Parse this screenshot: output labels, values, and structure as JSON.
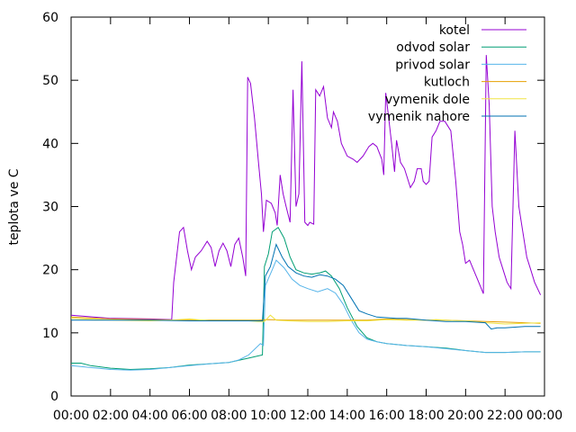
{
  "chart_data": {
    "type": "line",
    "title": "",
    "xlabel": "",
    "ylabel": "teplota ve C",
    "xlim": [
      0,
      24
    ],
    "ylim": [
      0,
      60
    ],
    "x_ticks": [
      0,
      2,
      4,
      6,
      8,
      10,
      12,
      14,
      16,
      18,
      20,
      22,
      24
    ],
    "x_tick_labels": [
      "00:00",
      "02:00",
      "04:00",
      "06:00",
      "08:00",
      "10:00",
      "12:00",
      "14:00",
      "16:00",
      "18:00",
      "20:00",
      "22:00",
      "00:00"
    ],
    "y_ticks": [
      0,
      10,
      20,
      30,
      40,
      50,
      60
    ],
    "y_tick_labels": [
      "0",
      "10",
      "20",
      "30",
      "40",
      "50",
      "60"
    ],
    "grid": false,
    "legend_position": "top-right",
    "series": [
      {
        "name": "kotel",
        "color": "#9400d3",
        "points": [
          [
            0,
            12.8
          ],
          [
            2,
            12.3
          ],
          [
            4,
            12.2
          ],
          [
            5.1,
            12.1
          ],
          [
            5.2,
            18
          ],
          [
            5.5,
            26
          ],
          [
            5.7,
            26.7
          ],
          [
            5.9,
            23
          ],
          [
            6.1,
            20
          ],
          [
            6.3,
            22
          ],
          [
            6.6,
            23
          ],
          [
            6.9,
            24.5
          ],
          [
            7.1,
            23.5
          ],
          [
            7.3,
            20.5
          ],
          [
            7.5,
            23
          ],
          [
            7.7,
            24.2
          ],
          [
            7.9,
            23
          ],
          [
            8.1,
            20.5
          ],
          [
            8.3,
            24
          ],
          [
            8.5,
            25
          ],
          [
            8.7,
            22
          ],
          [
            8.85,
            19
          ],
          [
            8.95,
            50.5
          ],
          [
            9.1,
            49.5
          ],
          [
            9.3,
            44
          ],
          [
            9.5,
            37
          ],
          [
            9.65,
            32
          ],
          [
            9.75,
            26
          ],
          [
            9.9,
            31
          ],
          [
            10.15,
            30.5
          ],
          [
            10.35,
            29
          ],
          [
            10.45,
            27
          ],
          [
            10.6,
            35
          ],
          [
            10.75,
            32
          ],
          [
            10.9,
            30
          ],
          [
            11.1,
            27.5
          ],
          [
            11.25,
            48.5
          ],
          [
            11.4,
            30
          ],
          [
            11.55,
            32
          ],
          [
            11.7,
            53
          ],
          [
            11.85,
            27.5
          ],
          [
            12.0,
            27
          ],
          [
            12.1,
            27.5
          ],
          [
            12.3,
            27.2
          ],
          [
            12.4,
            48.5
          ],
          [
            12.6,
            47.5
          ],
          [
            12.8,
            49
          ],
          [
            13.0,
            44
          ],
          [
            13.2,
            42.5
          ],
          [
            13.3,
            45
          ],
          [
            13.5,
            43.5
          ],
          [
            13.7,
            40
          ],
          [
            14.0,
            38
          ],
          [
            14.3,
            37.5
          ],
          [
            14.5,
            37
          ],
          [
            14.8,
            38
          ],
          [
            15.1,
            39.5
          ],
          [
            15.3,
            40
          ],
          [
            15.5,
            39.5
          ],
          [
            15.75,
            37.5
          ],
          [
            15.85,
            35
          ],
          [
            15.95,
            48
          ],
          [
            16.1,
            44
          ],
          [
            16.25,
            40
          ],
          [
            16.4,
            35.5
          ],
          [
            16.5,
            40.5
          ],
          [
            16.7,
            37
          ],
          [
            16.9,
            36
          ],
          [
            17.2,
            33
          ],
          [
            17.4,
            34
          ],
          [
            17.55,
            36
          ],
          [
            17.75,
            36
          ],
          [
            17.85,
            34
          ],
          [
            18.0,
            33.5
          ],
          [
            18.15,
            34
          ],
          [
            18.3,
            41
          ],
          [
            18.5,
            42
          ],
          [
            18.7,
            43.5
          ],
          [
            18.95,
            43.5
          ],
          [
            19.25,
            42
          ],
          [
            19.5,
            34
          ],
          [
            19.7,
            26
          ],
          [
            19.85,
            24
          ],
          [
            20.0,
            21
          ],
          [
            20.2,
            21.5
          ],
          [
            20.4,
            20
          ],
          [
            20.6,
            18.5
          ],
          [
            20.9,
            16.2
          ],
          [
            21.05,
            54
          ],
          [
            21.2,
            46
          ],
          [
            21.35,
            30
          ],
          [
            21.5,
            26
          ],
          [
            21.7,
            22
          ],
          [
            21.9,
            20
          ],
          [
            22.1,
            18
          ],
          [
            22.3,
            17
          ],
          [
            22.5,
            42
          ],
          [
            22.7,
            30
          ],
          [
            22.9,
            26
          ],
          [
            23.1,
            22
          ],
          [
            23.3,
            20
          ],
          [
            23.5,
            18
          ],
          [
            23.8,
            16
          ]
        ]
      },
      {
        "name": "odvod solar",
        "color": "#009e73",
        "points": [
          [
            0,
            5.2
          ],
          [
            0.5,
            5.2
          ],
          [
            1,
            4.8
          ],
          [
            2,
            4.4
          ],
          [
            3,
            4.2
          ],
          [
            4,
            4.3
          ],
          [
            5,
            4.5
          ],
          [
            6,
            4.9
          ],
          [
            7,
            5.1
          ],
          [
            8,
            5.3
          ],
          [
            9,
            6.0
          ],
          [
            9.7,
            6.5
          ],
          [
            9.8,
            20.5
          ],
          [
            10.0,
            22.5
          ],
          [
            10.2,
            26
          ],
          [
            10.5,
            26.7
          ],
          [
            10.8,
            25
          ],
          [
            11.1,
            22
          ],
          [
            11.4,
            20
          ],
          [
            11.8,
            19.5
          ],
          [
            12.2,
            19.3
          ],
          [
            12.6,
            19.5
          ],
          [
            12.9,
            19.8
          ],
          [
            13.2,
            19
          ],
          [
            13.6,
            17
          ],
          [
            14.0,
            14
          ],
          [
            14.5,
            11
          ],
          [
            15.0,
            9.2
          ],
          [
            15.5,
            8.6
          ],
          [
            16,
            8.3
          ],
          [
            17,
            8.0
          ],
          [
            18,
            7.8
          ],
          [
            19,
            7.6
          ],
          [
            20,
            7.2
          ],
          [
            21,
            6.9
          ],
          [
            22,
            6.9
          ],
          [
            23,
            7.0
          ],
          [
            23.8,
            7.0
          ]
        ]
      },
      {
        "name": "privod solar",
        "color": "#56b4e9",
        "points": [
          [
            0,
            4.8
          ],
          [
            1,
            4.5
          ],
          [
            2,
            4.2
          ],
          [
            3,
            4.1
          ],
          [
            4,
            4.2
          ],
          [
            5,
            4.5
          ],
          [
            6,
            4.8
          ],
          [
            7,
            5.1
          ],
          [
            8,
            5.3
          ],
          [
            8.5,
            5.7
          ],
          [
            9,
            6.5
          ],
          [
            9.6,
            8.3
          ],
          [
            9.75,
            8
          ],
          [
            9.85,
            17.5
          ],
          [
            10.2,
            20
          ],
          [
            10.4,
            21.5
          ],
          [
            10.8,
            20.3
          ],
          [
            11.2,
            18.5
          ],
          [
            11.6,
            17.5
          ],
          [
            12.0,
            17
          ],
          [
            12.5,
            16.5
          ],
          [
            13.0,
            17
          ],
          [
            13.4,
            16.3
          ],
          [
            13.8,
            14.5
          ],
          [
            14.2,
            12
          ],
          [
            14.6,
            10
          ],
          [
            15.0,
            9.0
          ],
          [
            15.5,
            8.6
          ],
          [
            16,
            8.3
          ],
          [
            17,
            8.0
          ],
          [
            18,
            7.8
          ],
          [
            19,
            7.5
          ],
          [
            20,
            7.2
          ],
          [
            21,
            6.9
          ],
          [
            22,
            6.9
          ],
          [
            23,
            7.0
          ],
          [
            23.8,
            7.0
          ]
        ]
      },
      {
        "name": "kutloch",
        "color": "#e69f00",
        "points": [
          [
            0,
            12.5
          ],
          [
            2,
            12.2
          ],
          [
            4,
            12.1
          ],
          [
            6,
            12.0
          ],
          [
            8,
            12.0
          ],
          [
            9.5,
            12.0
          ],
          [
            10,
            12.1
          ],
          [
            11,
            12.0
          ],
          [
            12,
            12.0
          ],
          [
            13,
            12.0
          ],
          [
            14,
            12.0
          ],
          [
            15,
            12.0
          ],
          [
            16,
            12.2
          ],
          [
            17,
            12.1
          ],
          [
            18,
            12.0
          ],
          [
            19,
            12.0
          ],
          [
            20,
            11.9
          ],
          [
            21,
            11.8
          ],
          [
            22,
            11.7
          ],
          [
            23,
            11.6
          ],
          [
            23.8,
            11.5
          ]
        ]
      },
      {
        "name": "vymenik dole",
        "color": "#f0e442",
        "points": [
          [
            0,
            12.3
          ],
          [
            2,
            12.0
          ],
          [
            4,
            11.9
          ],
          [
            5,
            12.0
          ],
          [
            6,
            12.2
          ],
          [
            7,
            11.9
          ],
          [
            8,
            11.9
          ],
          [
            9,
            11.9
          ],
          [
            9.5,
            11.8
          ],
          [
            9.8,
            11.8
          ],
          [
            10.1,
            12.8
          ],
          [
            10.4,
            12.0
          ],
          [
            11,
            11.9
          ],
          [
            12,
            11.8
          ],
          [
            13,
            11.8
          ],
          [
            14,
            11.9
          ],
          [
            15,
            11.9
          ],
          [
            16,
            12.1
          ],
          [
            17,
            12.0
          ],
          [
            18,
            12.0
          ],
          [
            18.5,
            12.1
          ],
          [
            19,
            12.0
          ],
          [
            20,
            11.9
          ],
          [
            21,
            11.6
          ],
          [
            22,
            11.4
          ],
          [
            23,
            11.5
          ],
          [
            23.8,
            11.6
          ]
        ]
      },
      {
        "name": "vymenik nahore",
        "color": "#0072b2",
        "points": [
          [
            0,
            12.0
          ],
          [
            2,
            12.0
          ],
          [
            4,
            12.0
          ],
          [
            6,
            11.9
          ],
          [
            8,
            11.9
          ],
          [
            9.7,
            11.9
          ],
          [
            9.85,
            19
          ],
          [
            10.1,
            20.5
          ],
          [
            10.4,
            24
          ],
          [
            10.7,
            22
          ],
          [
            11.0,
            20.5
          ],
          [
            11.4,
            19.5
          ],
          [
            11.8,
            19.0
          ],
          [
            12.2,
            18.8
          ],
          [
            12.6,
            19.2
          ],
          [
            13.0,
            19.0
          ],
          [
            13.4,
            18.5
          ],
          [
            13.8,
            17.5
          ],
          [
            14.2,
            15.5
          ],
          [
            14.6,
            13.5
          ],
          [
            15.0,
            13.0
          ],
          [
            15.5,
            12.5
          ],
          [
            16.5,
            12.3
          ],
          [
            17,
            12.3
          ],
          [
            18,
            12.0
          ],
          [
            19,
            11.8
          ],
          [
            20,
            11.8
          ],
          [
            21,
            11.6
          ],
          [
            21.3,
            10.6
          ],
          [
            21.6,
            10.8
          ],
          [
            22,
            10.8
          ],
          [
            23,
            11.0
          ],
          [
            23.8,
            11.0
          ]
        ]
      }
    ]
  }
}
